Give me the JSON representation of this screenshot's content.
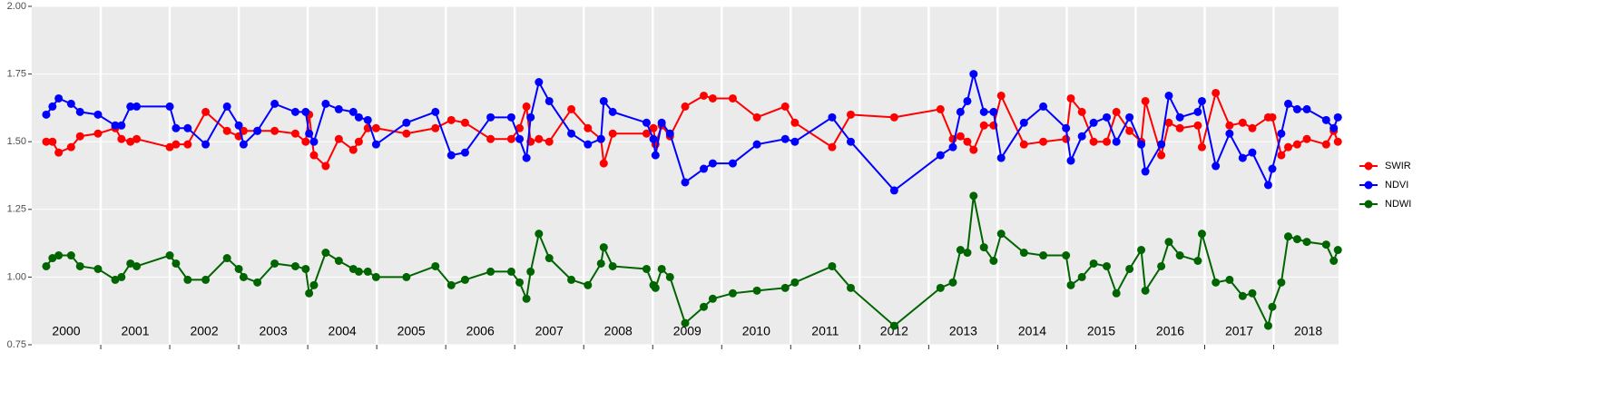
{
  "chart_data": {
    "type": "line",
    "x": [
      2000.21,
      2000.3,
      2000.39,
      2000.57,
      2000.7,
      2000.96,
      2001.21,
      2001.3,
      2001.43,
      2001.52,
      2002.0,
      2002.09,
      2002.26,
      2002.52,
      2002.83,
      2003.0,
      2003.07,
      2003.27,
      2003.52,
      2003.82,
      2003.97,
      2004.02,
      2004.09,
      2004.26,
      2004.45,
      2004.66,
      2004.74,
      2004.87,
      2004.99,
      2005.43,
      2005.85,
      2006.08,
      2006.28,
      2006.65,
      2006.95,
      2007.07,
      2007.17,
      2007.23,
      2007.35,
      2007.5,
      2007.82,
      2008.06,
      2008.25,
      2008.29,
      2008.42,
      2008.91,
      2009.01,
      2009.04,
      2009.13,
      2009.25,
      2009.47,
      2009.74,
      2009.87,
      2010.16,
      2010.51,
      2010.92,
      2011.06,
      2011.6,
      2011.87,
      2012.5,
      2013.17,
      2013.35,
      2013.46,
      2013.56,
      2013.65,
      2013.8,
      2013.94,
      2014.05,
      2014.38,
      2014.66,
      2014.99,
      2015.06,
      2015.22,
      2015.39,
      2015.58,
      2015.72,
      2015.91,
      2016.08,
      2016.14,
      2016.37,
      2016.48,
      2016.64,
      2016.9,
      2016.96,
      2017.16,
      2017.36,
      2017.55,
      2017.69,
      2017.92,
      2017.98,
      2018.11,
      2018.21,
      2018.34,
      2018.48,
      2018.76,
      2018.87,
      2018.93
    ],
    "series": [
      {
        "name": "SWIR",
        "color": "#ff0000",
        "values": [
          1.5,
          1.5,
          1.46,
          1.48,
          1.52,
          1.53,
          1.55,
          1.51,
          1.5,
          1.51,
          1.48,
          1.49,
          1.49,
          1.61,
          1.54,
          1.52,
          1.54,
          1.54,
          1.54,
          1.53,
          1.5,
          1.6,
          1.45,
          1.41,
          1.51,
          1.47,
          1.5,
          1.55,
          1.55,
          1.53,
          1.55,
          1.58,
          1.57,
          1.51,
          1.51,
          1.55,
          1.63,
          1.5,
          1.51,
          1.5,
          1.62,
          1.55,
          1.51,
          1.42,
          1.53,
          1.53,
          1.55,
          1.49,
          1.56,
          1.52,
          1.63,
          1.67,
          1.66,
          1.66,
          1.59,
          1.63,
          1.57,
          1.48,
          1.6,
          1.59,
          1.62,
          1.51,
          1.52,
          1.5,
          1.47,
          1.56,
          1.56,
          1.67,
          1.49,
          1.5,
          1.51,
          1.66,
          1.61,
          1.5,
          1.5,
          1.61,
          1.54,
          1.5,
          1.65,
          1.45,
          1.57,
          1.55,
          1.56,
          1.48,
          1.68,
          1.56,
          1.57,
          1.55,
          1.59,
          1.59,
          1.45,
          1.48,
          1.49,
          1.51,
          1.49,
          1.54,
          1.5
        ]
      },
      {
        "name": "NDVI",
        "color": "#0000ff",
        "values": [
          1.6,
          1.63,
          1.66,
          1.64,
          1.61,
          1.6,
          1.56,
          1.56,
          1.63,
          1.63,
          1.63,
          1.55,
          1.55,
          1.49,
          1.63,
          1.56,
          1.49,
          1.54,
          1.64,
          1.61,
          1.61,
          1.53,
          1.5,
          1.64,
          1.62,
          1.61,
          1.59,
          1.58,
          1.49,
          1.57,
          1.61,
          1.45,
          1.46,
          1.59,
          1.59,
          1.51,
          1.44,
          1.59,
          1.72,
          1.65,
          1.53,
          1.49,
          1.51,
          1.65,
          1.61,
          1.57,
          1.51,
          1.45,
          1.57,
          1.53,
          1.35,
          1.4,
          1.42,
          1.42,
          1.49,
          1.51,
          1.5,
          1.59,
          1.5,
          1.32,
          1.45,
          1.48,
          1.61,
          1.65,
          1.75,
          1.61,
          1.61,
          1.44,
          1.57,
          1.63,
          1.55,
          1.43,
          1.52,
          1.57,
          1.59,
          1.5,
          1.59,
          1.49,
          1.39,
          1.49,
          1.67,
          1.59,
          1.61,
          1.65,
          1.41,
          1.53,
          1.44,
          1.46,
          1.34,
          1.4,
          1.53,
          1.64,
          1.62,
          1.62,
          1.58,
          1.55,
          1.59
        ]
      },
      {
        "name": "NDWI",
        "color": "#006400",
        "values": [
          1.04,
          1.07,
          1.08,
          1.08,
          1.04,
          1.03,
          0.99,
          1.0,
          1.05,
          1.04,
          1.08,
          1.05,
          0.99,
          0.99,
          1.07,
          1.03,
          1.0,
          0.98,
          1.05,
          1.04,
          1.03,
          0.94,
          0.97,
          1.09,
          1.06,
          1.03,
          1.02,
          1.02,
          1.0,
          1.0,
          1.04,
          0.97,
          0.99,
          1.02,
          1.02,
          0.98,
          0.92,
          1.02,
          1.16,
          1.07,
          0.99,
          0.97,
          1.05,
          1.11,
          1.04,
          1.03,
          0.97,
          0.96,
          1.03,
          1.0,
          0.83,
          0.89,
          0.92,
          0.94,
          0.95,
          0.96,
          0.98,
          1.04,
          0.96,
          0.82,
          0.96,
          0.98,
          1.1,
          1.09,
          1.3,
          1.11,
          1.06,
          1.16,
          1.09,
          1.08,
          1.08,
          0.97,
          1.0,
          1.05,
          1.04,
          0.94,
          1.03,
          1.1,
          0.95,
          1.04,
          1.13,
          1.08,
          1.06,
          1.16,
          0.98,
          0.99,
          0.93,
          0.94,
          0.82,
          0.89,
          0.98,
          1.15,
          1.14,
          1.13,
          1.12,
          1.06,
          1.1
        ]
      }
    ],
    "xlim": [
      2000.0,
      2018.94
    ],
    "xticks": [
      2001,
      2002,
      2003,
      2004,
      2005,
      2006,
      2007,
      2008,
      2009,
      2010,
      2011,
      2012,
      2013,
      2014,
      2015,
      2016,
      2017,
      2018
    ],
    "year_labels": [
      {
        "value": 2000.5,
        "label": "2000"
      },
      {
        "value": 2001.5,
        "label": "2001"
      },
      {
        "value": 2002.5,
        "label": "2002"
      },
      {
        "value": 2003.5,
        "label": "2003"
      },
      {
        "value": 2004.5,
        "label": "2004"
      },
      {
        "value": 2005.5,
        "label": "2005"
      },
      {
        "value": 2006.5,
        "label": "2006"
      },
      {
        "value": 2007.5,
        "label": "2007"
      },
      {
        "value": 2008.5,
        "label": "2008"
      },
      {
        "value": 2009.5,
        "label": "2009"
      },
      {
        "value": 2010.5,
        "label": "2010"
      },
      {
        "value": 2011.5,
        "label": "2011"
      },
      {
        "value": 2012.5,
        "label": "2012"
      },
      {
        "value": 2013.5,
        "label": "2013"
      },
      {
        "value": 2014.5,
        "label": "2014"
      },
      {
        "value": 2015.5,
        "label": "2015"
      },
      {
        "value": 2016.5,
        "label": "2016"
      },
      {
        "value": 2017.5,
        "label": "2017"
      },
      {
        "value": 2018.5,
        "label": "2018"
      }
    ],
    "ylim": [
      0.75,
      2.0
    ],
    "yticks": [
      {
        "value": 0.75,
        "label": "0.75"
      },
      {
        "value": 1,
        "label": "1.00"
      },
      {
        "value": 1.25,
        "label": "1.25"
      },
      {
        "value": 1.5,
        "label": "1.50"
      },
      {
        "value": 1.75,
        "label": "1.75"
      },
      {
        "value": 2,
        "label": "2.00"
      }
    ],
    "grid": true,
    "legend": "right"
  }
}
